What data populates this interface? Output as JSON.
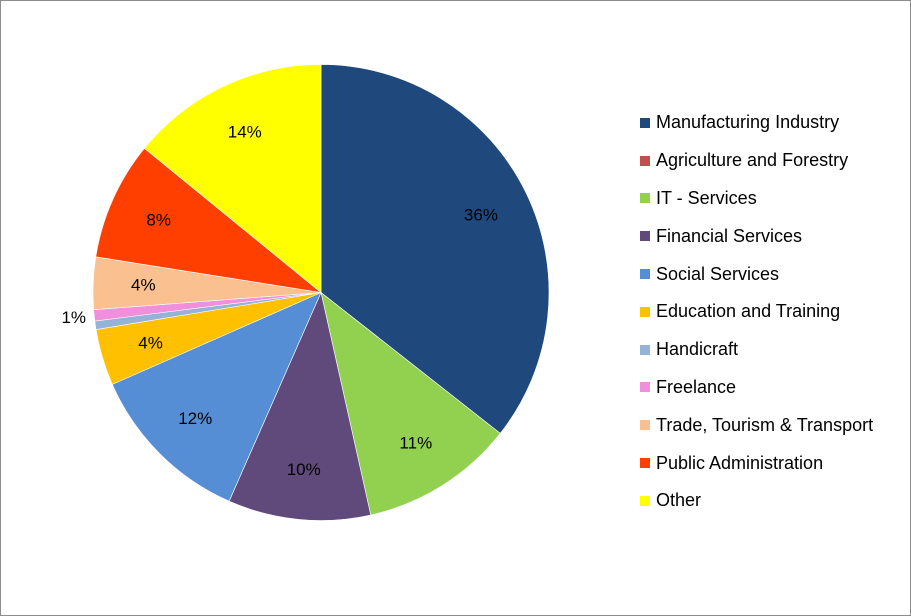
{
  "chart_data": {
    "type": "pie",
    "title": "",
    "legend_position": "right",
    "start_angle_deg": 0,
    "direction": "clockwise",
    "slices": [
      {
        "name": "Manufacturing Industry",
        "value": 35.6,
        "label": "36%",
        "color": "#1F497D"
      },
      {
        "name": "Agriculture and Forestry",
        "value": 0.0,
        "label": "",
        "color": "#C0504D"
      },
      {
        "name": "IT - Services",
        "value": 10.9,
        "label": "11%",
        "color": "#92D050"
      },
      {
        "name": "Financial Services",
        "value": 10.1,
        "label": "10%",
        "color": "#604A7B"
      },
      {
        "name": "Social Services",
        "value": 11.8,
        "label": "12%",
        "color": "#558ED5"
      },
      {
        "name": "Education and Training",
        "value": 4.0,
        "label": "4%",
        "color": "#FFC000"
      },
      {
        "name": "Handicraft",
        "value": 0.6,
        "label": "",
        "color": "#95B3D7"
      },
      {
        "name": "Freelance",
        "value": 0.8,
        "label": "1%",
        "color": "#F08FDC"
      },
      {
        "name": "Trade, Tourism & Transport",
        "value": 3.7,
        "label": "4%",
        "color": "#FAC090"
      },
      {
        "name": "Public Administration",
        "value": 8.4,
        "label": "8%",
        "color": "#FF3F00"
      },
      {
        "name": "Other",
        "value": 14.1,
        "label": "14%",
        "color": "#FFFF00"
      }
    ]
  }
}
